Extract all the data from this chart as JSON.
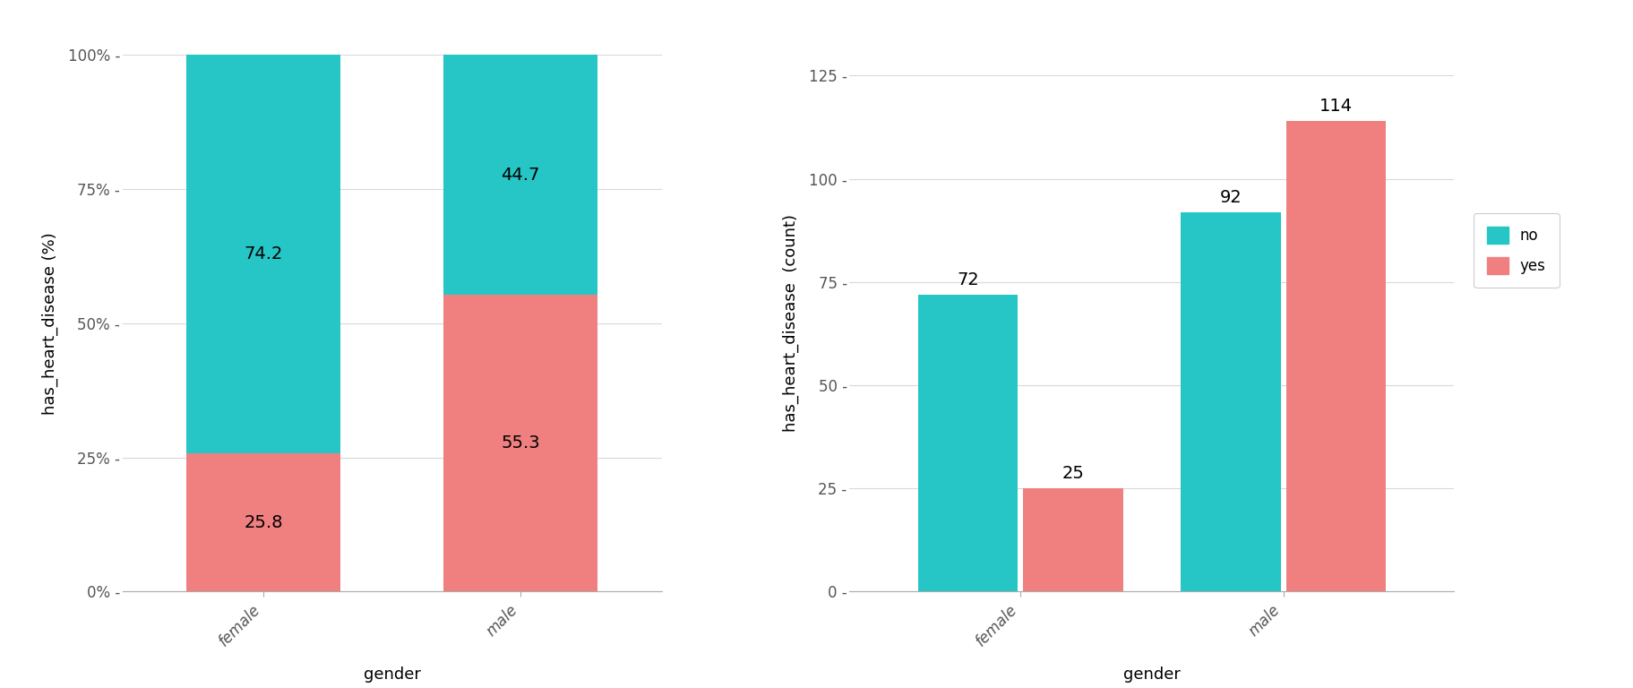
{
  "color_no": "#26C6C6",
  "color_yes": "#F08080",
  "background_color": "#FFFFFF",
  "grid_color": "#D9D9D9",
  "categories": [
    "female",
    "male"
  ],
  "pct_yes": [
    25.8,
    55.3
  ],
  "pct_no": [
    74.2,
    44.7
  ],
  "count_no": [
    72,
    92
  ],
  "count_yes": [
    25,
    114
  ],
  "ylabel_left": "has_heart_disease (%)",
  "ylabel_right": "has_heart_disease  (count)",
  "xlabel": "gender",
  "yticks_left": [
    0,
    25,
    50,
    75,
    100
  ],
  "ytick_labels_left": [
    "0% -",
    "25% -",
    "50% -",
    "75% -",
    "100% -"
  ],
  "yticks_right": [
    0,
    25,
    50,
    75,
    100,
    125
  ],
  "ytick_labels_right": [
    "0 -",
    "25 -",
    "50 -",
    "75 -",
    "100 -",
    "125 -"
  ],
  "legend_labels": [
    "no",
    "yes"
  ],
  "label_fontsize": 13,
  "tick_fontsize": 12,
  "annot_fontsize": 14
}
